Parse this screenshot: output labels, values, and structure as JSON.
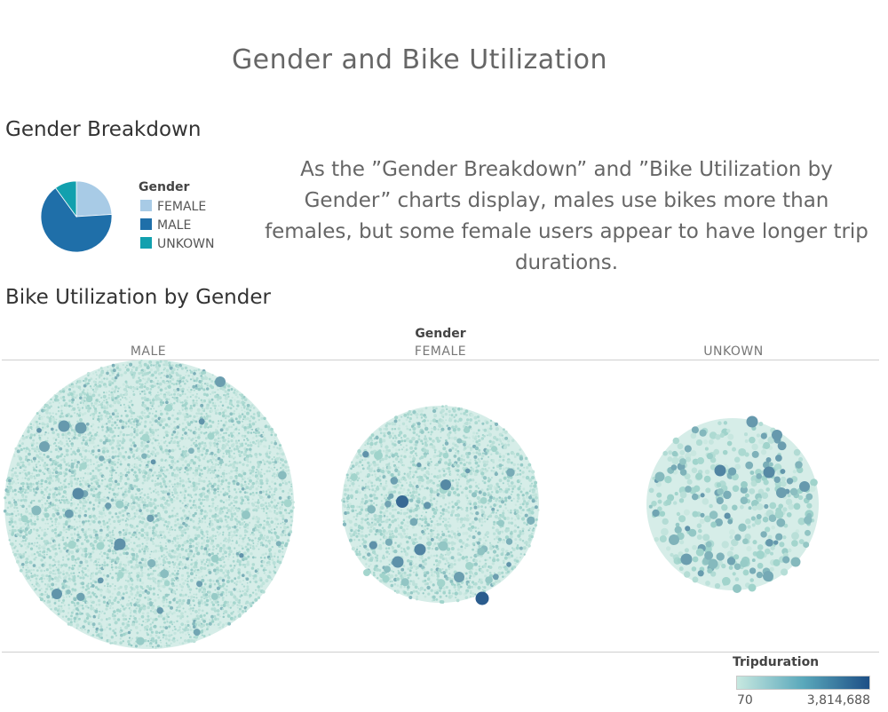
{
  "page": {
    "title": "Gender and Bike Utilization",
    "annotation": "As the ”Gender Breakdown” and ”Bike Utilization by Gender” charts display, males use bikes more than females, but some female users appear to have longer trip durations."
  },
  "colors": {
    "female": "#a8cbe6",
    "male": "#1f6fa9",
    "unknown": "#12a0ae",
    "ramp_low": "#c7e8e0",
    "ramp_high": "#1d4f86"
  },
  "chart_data": [
    {
      "type": "pie",
      "title": "Gender Breakdown",
      "legend_title": "Gender",
      "legend_position": "right",
      "categories": [
        "FEMALE",
        "MALE",
        "UNKOWN"
      ],
      "values": [
        24,
        66,
        10
      ]
    },
    {
      "type": "bubble",
      "title": "Bike Utilization by Gender",
      "facet_title": "Gender",
      "facets": [
        "MALE",
        "FEMALE",
        "UNKOWN"
      ],
      "relative_size": [
        1.0,
        0.68,
        0.59
      ],
      "color_legend": {
        "title": "Tripduration",
        "min_label": "70",
        "max_label": "3,814,688"
      }
    }
  ]
}
